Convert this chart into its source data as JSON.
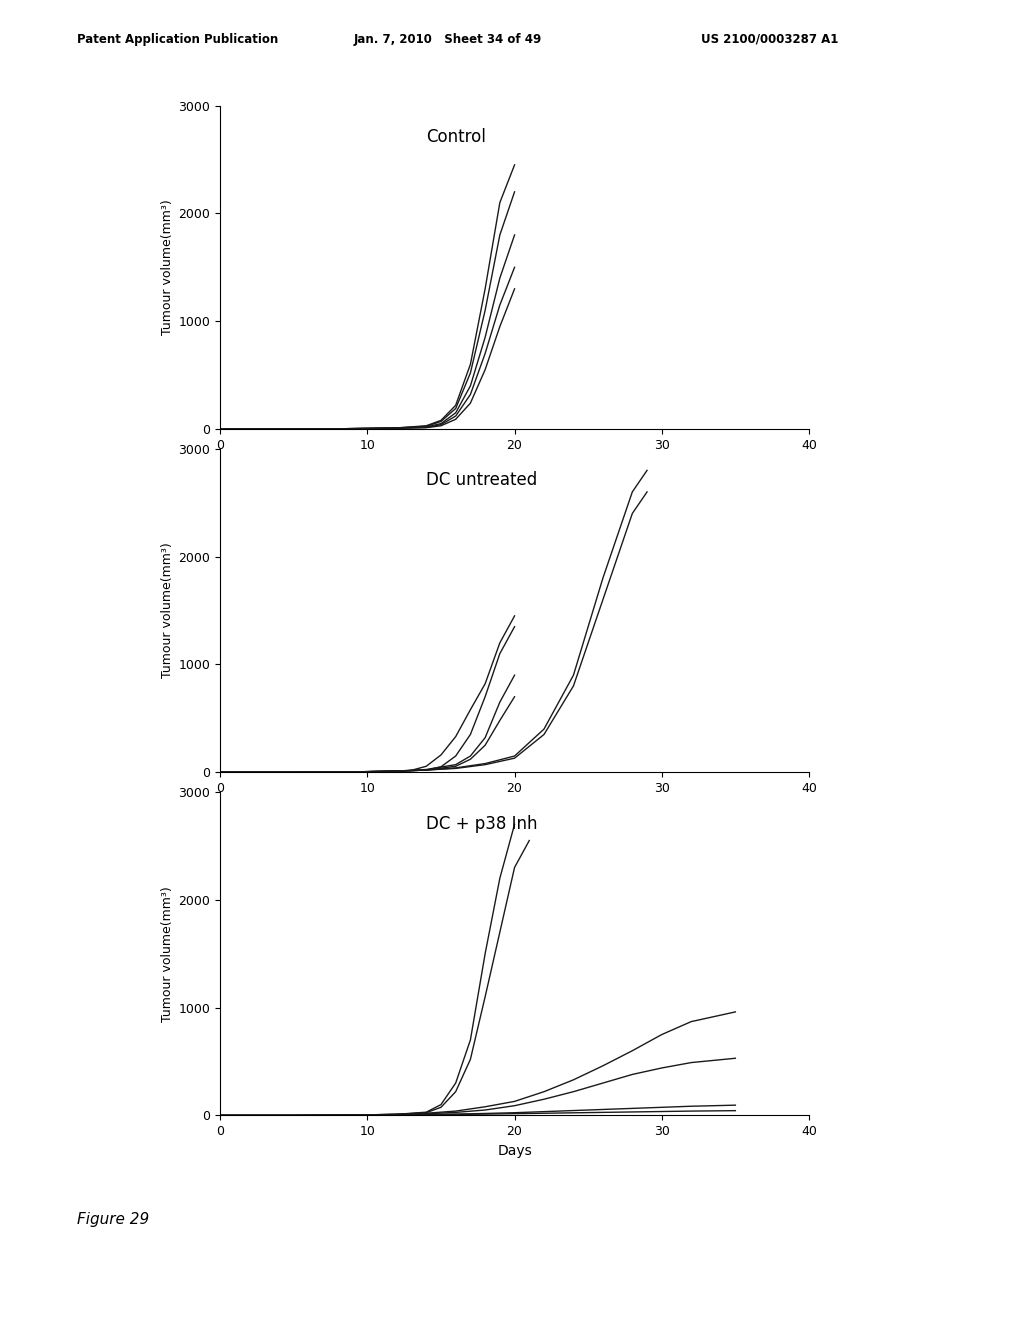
{
  "header_left": "Patent Application Publication",
  "header_center": "Jan. 7, 2010   Sheet 34 of 49",
  "header_right": "US 2100/0003287 A1",
  "figure_caption": "Figure 29",
  "ylabel": "Tumour volume(mm³)",
  "xlabel": "Days",
  "ylim": [
    0,
    3000
  ],
  "xlim": [
    0,
    40
  ],
  "yticks": [
    0,
    1000,
    2000,
    3000
  ],
  "xticks": [
    0,
    10,
    20,
    30,
    40
  ],
  "bg_color": "#ffffff",
  "line_color": "#1a1a1a",
  "panels": [
    {
      "title": "Control",
      "curves": [
        {
          "x": [
            0,
            5,
            8,
            10,
            12,
            14,
            15,
            16,
            17,
            18,
            19,
            20
          ],
          "y": [
            0,
            0,
            2,
            5,
            10,
            30,
            80,
            220,
            600,
            1300,
            2100,
            2450
          ]
        },
        {
          "x": [
            0,
            5,
            8,
            10,
            12,
            14,
            15,
            16,
            17,
            18,
            19,
            20
          ],
          "y": [
            0,
            0,
            2,
            5,
            10,
            25,
            70,
            190,
            520,
            1100,
            1800,
            2200
          ]
        },
        {
          "x": [
            0,
            5,
            8,
            10,
            12,
            14,
            15,
            16,
            17,
            18,
            19,
            20
          ],
          "y": [
            0,
            0,
            2,
            5,
            8,
            18,
            50,
            150,
            400,
            850,
            1400,
            1800
          ]
        },
        {
          "x": [
            0,
            5,
            8,
            10,
            12,
            14,
            15,
            16,
            17,
            18,
            19,
            20
          ],
          "y": [
            0,
            0,
            2,
            5,
            8,
            15,
            40,
            120,
            320,
            700,
            1150,
            1500
          ]
        },
        {
          "x": [
            0,
            5,
            8,
            10,
            12,
            14,
            15,
            16,
            17,
            18,
            19,
            20
          ],
          "y": [
            0,
            0,
            2,
            5,
            8,
            12,
            30,
            90,
            240,
            550,
            950,
            1300
          ]
        }
      ]
    },
    {
      "title": "DC untreated",
      "curves": [
        {
          "x": [
            0,
            5,
            8,
            10,
            12,
            14,
            16,
            18,
            20,
            22,
            24,
            26,
            28,
            29
          ],
          "y": [
            0,
            0,
            2,
            5,
            10,
            20,
            40,
            80,
            150,
            400,
            900,
            1800,
            2600,
            2800
          ]
        },
        {
          "x": [
            0,
            5,
            8,
            10,
            12,
            14,
            16,
            18,
            20,
            22,
            24,
            26,
            28,
            29
          ],
          "y": [
            0,
            0,
            2,
            5,
            10,
            20,
            35,
            70,
            130,
            350,
            800,
            1600,
            2400,
            2600
          ]
        },
        {
          "x": [
            0,
            5,
            8,
            10,
            12,
            14,
            15,
            16,
            17,
            18,
            19,
            20
          ],
          "y": [
            0,
            0,
            2,
            5,
            10,
            20,
            50,
            150,
            350,
            700,
            1100,
            1350
          ]
        },
        {
          "x": [
            0,
            5,
            8,
            10,
            12,
            13,
            14,
            15,
            16,
            17,
            18,
            19,
            20
          ],
          "y": [
            0,
            0,
            2,
            5,
            10,
            18,
            55,
            160,
            330,
            580,
            820,
            1200,
            1450
          ]
        },
        {
          "x": [
            0,
            5,
            8,
            10,
            12,
            14,
            16,
            17,
            18,
            19,
            20
          ],
          "y": [
            0,
            0,
            2,
            5,
            10,
            25,
            70,
            150,
            320,
            650,
            900
          ]
        },
        {
          "x": [
            0,
            5,
            8,
            10,
            12,
            14,
            16,
            17,
            18,
            19,
            20
          ],
          "y": [
            0,
            0,
            2,
            5,
            10,
            20,
            55,
            120,
            250,
            480,
            700
          ]
        }
      ]
    },
    {
      "title": "DC + p38 Inh",
      "curves": [
        {
          "x": [
            0,
            5,
            8,
            10,
            12,
            14,
            15,
            16,
            17,
            18,
            19,
            20
          ],
          "y": [
            0,
            0,
            2,
            5,
            10,
            30,
            100,
            300,
            700,
            1500,
            2200,
            2700
          ]
        },
        {
          "x": [
            0,
            5,
            8,
            10,
            12,
            14,
            15,
            16,
            17,
            18,
            19,
            20,
            21
          ],
          "y": [
            0,
            0,
            2,
            5,
            10,
            25,
            75,
            220,
            520,
            1100,
            1700,
            2300,
            2550
          ]
        },
        {
          "x": [
            0,
            5,
            8,
            10,
            12,
            14,
            16,
            18,
            20,
            22,
            24,
            26,
            28,
            30,
            32,
            35
          ],
          "y": [
            0,
            0,
            2,
            5,
            10,
            20,
            40,
            80,
            130,
            220,
            330,
            460,
            600,
            750,
            870,
            960
          ]
        },
        {
          "x": [
            0,
            5,
            8,
            10,
            12,
            14,
            16,
            18,
            20,
            22,
            24,
            26,
            28,
            30,
            32,
            35
          ],
          "y": [
            0,
            0,
            2,
            5,
            8,
            15,
            28,
            50,
            90,
            150,
            220,
            300,
            380,
            440,
            490,
            530
          ]
        },
        {
          "x": [
            0,
            5,
            8,
            10,
            12,
            14,
            16,
            18,
            20,
            22,
            24,
            26,
            28,
            30,
            32,
            35
          ],
          "y": [
            0,
            0,
            2,
            3,
            5,
            8,
            12,
            18,
            25,
            35,
            45,
            55,
            65,
            75,
            85,
            95
          ]
        },
        {
          "x": [
            0,
            5,
            8,
            10,
            12,
            14,
            16,
            18,
            20,
            22,
            24,
            26,
            28,
            30,
            32,
            35
          ],
          "y": [
            0,
            0,
            1,
            2,
            4,
            6,
            9,
            12,
            16,
            20,
            24,
            28,
            32,
            36,
            40,
            44
          ]
        }
      ]
    }
  ]
}
